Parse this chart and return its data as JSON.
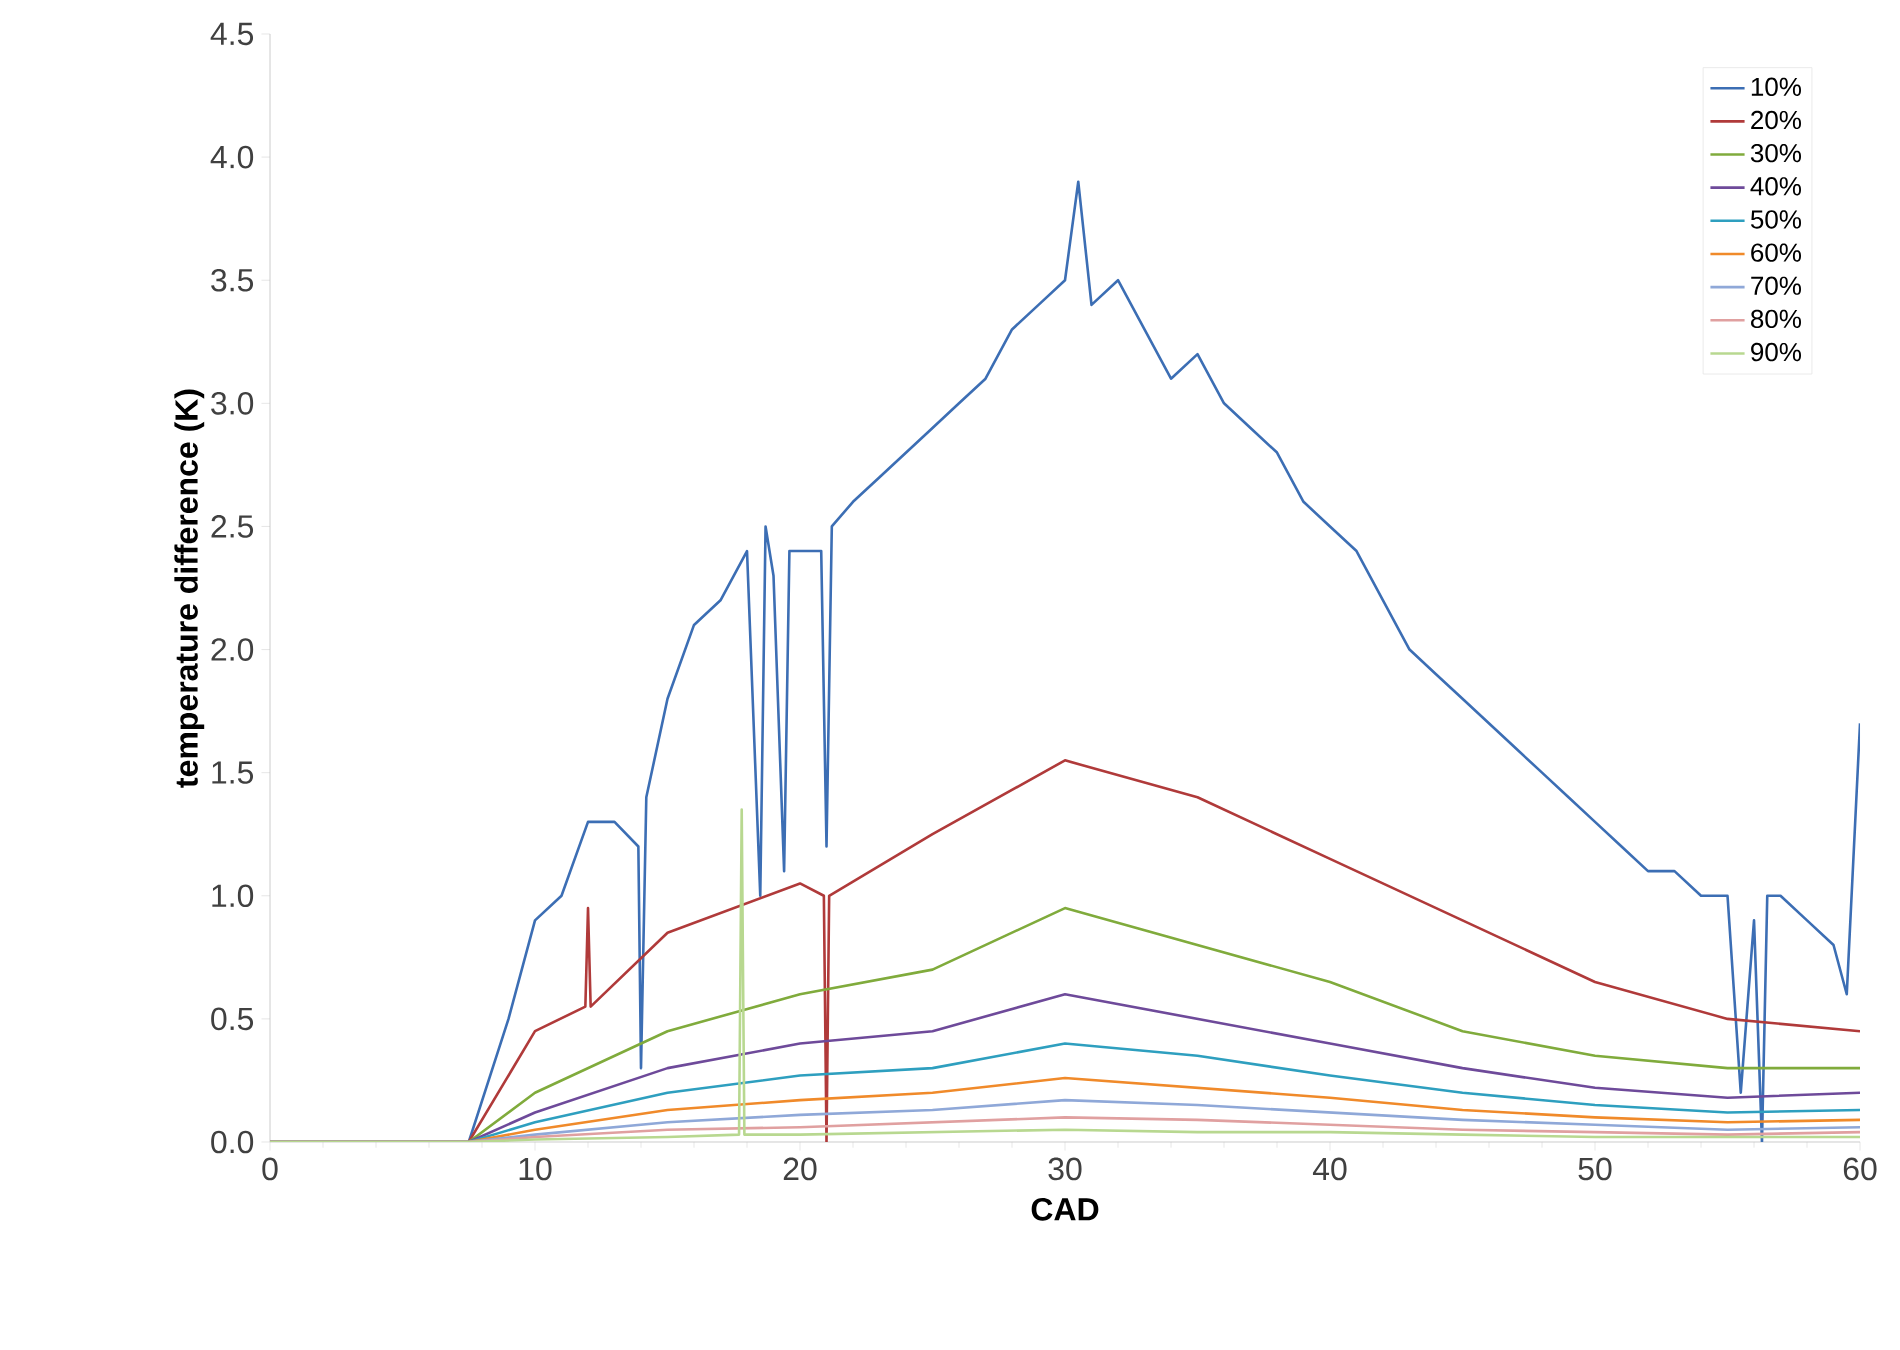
{
  "chart_data": {
    "type": "line",
    "xlabel": "CAD",
    "ylabel": "temperature difference (K)",
    "xlim": [
      0,
      60
    ],
    "ylim": [
      0,
      4.5
    ],
    "xticks": [
      0,
      10,
      20,
      30,
      40,
      50,
      60
    ],
    "yticks": [
      {
        "value": 0,
        "label": "0.0"
      },
      {
        "value": 0.5,
        "label": "0.5"
      },
      {
        "value": 1,
        "label": "1.0"
      },
      {
        "value": 1.5,
        "label": "1.5"
      },
      {
        "value": 2,
        "label": "2.0"
      },
      {
        "value": 2.5,
        "label": "2.5"
      },
      {
        "value": 3,
        "label": "3.0"
      },
      {
        "value": 3.5,
        "label": "3.5"
      },
      {
        "value": 4,
        "label": "4.0"
      },
      {
        "value": 4.5,
        "label": "4.5"
      }
    ],
    "grid": false,
    "legend": "top right",
    "marker": "none",
    "line_style": "solid",
    "x": [
      0,
      7.5,
      10,
      15,
      20,
      25,
      30,
      35,
      40,
      45,
      50,
      55,
      60
    ],
    "series": [
      {
        "name": "10%",
        "color": "#3c6eb4",
        "x": [
          0,
          7.5,
          9,
          10,
          11,
          12,
          13,
          13.9,
          14,
          14.2,
          15,
          16,
          17,
          18,
          18.5,
          18.7,
          19,
          19.4,
          19.6,
          20,
          20.8,
          21,
          21.2,
          22,
          23,
          24,
          25,
          26,
          27,
          28,
          29,
          30,
          30.5,
          31,
          32,
          33,
          34,
          35,
          36,
          37,
          38,
          39,
          40,
          41,
          42,
          43,
          44,
          45,
          46,
          47,
          48,
          49,
          50,
          51,
          52,
          53,
          54,
          55,
          55.5,
          56,
          56.3,
          56.5,
          57,
          58,
          59,
          59.5,
          60
        ],
        "values": [
          0,
          0,
          0.5,
          0.9,
          1.0,
          1.3,
          1.3,
          1.2,
          0.3,
          1.4,
          1.8,
          2.1,
          2.2,
          2.4,
          1.0,
          2.5,
          2.3,
          1.1,
          2.4,
          2.4,
          2.4,
          1.2,
          2.5,
          2.6,
          2.7,
          2.8,
          2.9,
          3.0,
          3.1,
          3.3,
          3.4,
          3.5,
          3.9,
          3.4,
          3.5,
          3.3,
          3.1,
          3.2,
          3.0,
          2.9,
          2.8,
          2.6,
          2.5,
          2.4,
          2.2,
          2.0,
          1.9,
          1.8,
          1.7,
          1.6,
          1.5,
          1.4,
          1.3,
          1.2,
          1.1,
          1.1,
          1.0,
          1.0,
          0.2,
          0.9,
          0.0,
          1.0,
          1.0,
          0.9,
          0.8,
          0.6,
          1.7
        ]
      },
      {
        "name": "20%",
        "color": "#b03a3a",
        "x": [
          0,
          7.5,
          10,
          11.9,
          12,
          12.1,
          15,
          20,
          20.9,
          21,
          21.1,
          25,
          30,
          35,
          40,
          45,
          50,
          55,
          60
        ],
        "values": [
          0,
          0,
          0.45,
          0.55,
          0.95,
          0.55,
          0.85,
          1.05,
          1.0,
          0.0,
          1.0,
          1.25,
          1.55,
          1.4,
          1.15,
          0.9,
          0.65,
          0.5,
          0.45
        ]
      },
      {
        "name": "30%",
        "color": "#80ab3c",
        "values": [
          0,
          0,
          0.2,
          0.45,
          0.6,
          0.7,
          0.95,
          0.8,
          0.65,
          0.45,
          0.35,
          0.3,
          0.3
        ]
      },
      {
        "name": "40%",
        "color": "#6e4a9a",
        "values": [
          0,
          0,
          0.12,
          0.3,
          0.4,
          0.45,
          0.6,
          0.5,
          0.4,
          0.3,
          0.22,
          0.18,
          0.2
        ]
      },
      {
        "name": "50%",
        "color": "#2e9fbf",
        "values": [
          0,
          0,
          0.08,
          0.2,
          0.27,
          0.3,
          0.4,
          0.35,
          0.27,
          0.2,
          0.15,
          0.12,
          0.13
        ]
      },
      {
        "name": "60%",
        "color": "#f08a2a",
        "values": [
          0,
          0,
          0.05,
          0.13,
          0.17,
          0.2,
          0.26,
          0.22,
          0.18,
          0.13,
          0.1,
          0.08,
          0.09
        ]
      },
      {
        "name": "70%",
        "color": "#8fa8d8",
        "values": [
          0,
          0,
          0.03,
          0.08,
          0.11,
          0.13,
          0.17,
          0.15,
          0.12,
          0.09,
          0.07,
          0.05,
          0.06
        ]
      },
      {
        "name": "80%",
        "color": "#e0a0a0",
        "values": [
          0,
          0,
          0.02,
          0.05,
          0.06,
          0.08,
          0.1,
          0.09,
          0.07,
          0.05,
          0.04,
          0.03,
          0.04
        ]
      },
      {
        "name": "90%",
        "color": "#b8d890",
        "x": [
          0,
          7.5,
          10,
          15,
          17.7,
          17.8,
          17.9,
          20,
          25,
          30,
          35,
          40,
          45,
          50,
          55,
          60
        ],
        "values": [
          0,
          0,
          0.01,
          0.02,
          0.03,
          1.35,
          0.03,
          0.03,
          0.04,
          0.05,
          0.04,
          0.04,
          0.03,
          0.02,
          0.02,
          0.02
        ]
      }
    ]
  }
}
